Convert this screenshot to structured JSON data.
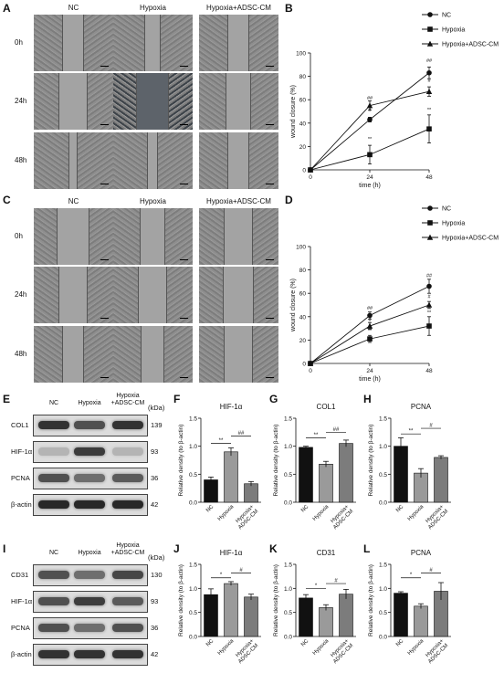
{
  "panels": {
    "A": "A",
    "B": "B",
    "C": "C",
    "D": "D",
    "E": "E",
    "F": "F",
    "G": "G",
    "H": "H",
    "I": "I",
    "J": "J",
    "K": "K",
    "L": "L"
  },
  "micro_cols": [
    "NC",
    "Hypoxia",
    "Hypoxia+ADSC-CM"
  ],
  "micro_rows": [
    "0h",
    "24h",
    "48h"
  ],
  "wb_top": {
    "cols": [
      "NC",
      "Hypoxia",
      "Hypoxia\n+ADSC-CM"
    ],
    "kda_title": "(kDa)",
    "rows": [
      {
        "name": "COL1",
        "kda": "139"
      },
      {
        "name": "HIF-1α",
        "kda": "93"
      },
      {
        "name": "PCNA",
        "kda": "36"
      },
      {
        "name": "β-actin",
        "kda": "42"
      }
    ]
  },
  "wb_bottom": {
    "cols": [
      "NC",
      "Hypoxia",
      "Hypoxia\n+ADSC-CM"
    ],
    "kda_title": "(kDa)",
    "rows": [
      {
        "name": "CD31",
        "kda": "130"
      },
      {
        "name": "HIF-1α",
        "kda": "93"
      },
      {
        "name": "PCNA",
        "kda": "36"
      },
      {
        "name": "β-actin",
        "kda": "42"
      }
    ]
  },
  "chart_data": [
    {
      "panel": "B",
      "type": "line",
      "x": [
        0,
        24,
        48
      ],
      "xlabel": "time (h)",
      "ylabel": "wound closure (%)",
      "ylim": [
        0,
        100
      ],
      "yticks": [
        0,
        20,
        40,
        60,
        80,
        100
      ],
      "legend_position": "top-right",
      "series": [
        {
          "name": "NC",
          "marker": "circle",
          "values": [
            0,
            43,
            83
          ],
          "err": [
            0,
            2,
            5
          ]
        },
        {
          "name": "Hypoxia",
          "marker": "square",
          "values": [
            0,
            13,
            35
          ],
          "err": [
            0,
            8,
            12
          ]
        },
        {
          "name": "Hypoxia+ADSC-CM",
          "marker": "triangle",
          "values": [
            0,
            55,
            67
          ],
          "err": [
            0,
            4,
            4
          ]
        }
      ],
      "annotations": [
        {
          "x": 24,
          "y": 60,
          "text": "##"
        },
        {
          "x": 24,
          "y": 50,
          "text": "#"
        },
        {
          "x": 24,
          "y": 25,
          "text": "**"
        },
        {
          "x": 48,
          "y": 92,
          "text": "##"
        },
        {
          "x": 48,
          "y": 75,
          "text": "#"
        },
        {
          "x": 48,
          "y": 50,
          "text": "**"
        }
      ]
    },
    {
      "panel": "D",
      "type": "line",
      "x": [
        0,
        24,
        48
      ],
      "xlabel": "time (h)",
      "ylabel": "wound closure (%)",
      "ylim": [
        0,
        100
      ],
      "yticks": [
        0,
        20,
        40,
        60,
        80,
        100
      ],
      "legend_position": "top-right",
      "series": [
        {
          "name": "NC",
          "marker": "circle",
          "values": [
            0,
            41,
            66
          ],
          "err": [
            0,
            3,
            6
          ]
        },
        {
          "name": "Hypoxia",
          "marker": "square",
          "values": [
            0,
            21,
            32
          ],
          "err": [
            0,
            3,
            8
          ]
        },
        {
          "name": "Hypoxia+ADSC-CM",
          "marker": "triangle",
          "values": [
            0,
            32,
            50
          ],
          "err": [
            0,
            3,
            3
          ]
        }
      ],
      "annotations": [
        {
          "x": 24,
          "y": 46,
          "text": "##"
        },
        {
          "x": 24,
          "y": 36,
          "text": "#"
        },
        {
          "x": 24,
          "y": 27,
          "text": "**"
        },
        {
          "x": 48,
          "y": 74,
          "text": "##"
        },
        {
          "x": 48,
          "y": 56,
          "text": "#"
        },
        {
          "x": 48,
          "y": 42,
          "text": "**"
        }
      ]
    },
    {
      "panel": "F",
      "type": "bar",
      "title": "HIF-1α",
      "categories": [
        "NC",
        "Hypoxia",
        "Hypoxia+\nADSC-CM"
      ],
      "values": [
        0.4,
        0.9,
        0.33
      ],
      "err": [
        0.05,
        0.07,
        0.04
      ],
      "ylim": [
        0,
        1.5
      ],
      "yticks": [
        0.0,
        0.5,
        1.0,
        1.5
      ],
      "ylabel": "Relative density (to β-actin)",
      "sig": [
        {
          "from": 0,
          "to": 1,
          "text": "**",
          "y": 1.05
        },
        {
          "from": 1,
          "to": 2,
          "text": "##",
          "y": 1.18
        }
      ]
    },
    {
      "panel": "G",
      "type": "bar",
      "title": "COL1",
      "categories": [
        "NC",
        "Hypoxia",
        "Hypoxia+\nADSC-CM"
      ],
      "values": [
        0.98,
        0.68,
        1.05
      ],
      "err": [
        0.02,
        0.05,
        0.06
      ],
      "ylim": [
        0,
        1.5
      ],
      "yticks": [
        0.0,
        0.5,
        1.0,
        1.5
      ],
      "ylabel": "Relative density (to β-actin)",
      "sig": [
        {
          "from": 0,
          "to": 1,
          "text": "**",
          "y": 1.15
        },
        {
          "from": 1,
          "to": 2,
          "text": "##",
          "y": 1.25
        }
      ]
    },
    {
      "panel": "H",
      "type": "bar",
      "title": "PCNA",
      "categories": [
        "NC",
        "Hypoxia",
        "Hypoxia+\nADSC-CM"
      ],
      "values": [
        1.0,
        0.52,
        0.8
      ],
      "err": [
        0.15,
        0.08,
        0.03
      ],
      "ylim": [
        0,
        1.5
      ],
      "yticks": [
        0.0,
        0.5,
        1.0,
        1.5
      ],
      "ylabel": "Relative density (to β-actin)",
      "sig": [
        {
          "from": 0,
          "to": 1,
          "text": "**",
          "y": 1.22
        },
        {
          "from": 1,
          "to": 2,
          "text": "#",
          "y": 1.32
        }
      ]
    },
    {
      "panel": "J",
      "type": "bar",
      "title": "HIF-1α",
      "categories": [
        "NC",
        "Hypoxia",
        "Hypoxia+\nADSC-CM"
      ],
      "values": [
        0.87,
        1.1,
        0.82
      ],
      "err": [
        0.12,
        0.04,
        0.06
      ],
      "ylim": [
        0,
        1.5
      ],
      "yticks": [
        0.0,
        0.5,
        1.0,
        1.5
      ],
      "ylabel": "Relative density (to β-actin)",
      "sig": [
        {
          "from": 0,
          "to": 1,
          "text": "*",
          "y": 1.22
        },
        {
          "from": 1,
          "to": 2,
          "text": "#",
          "y": 1.32
        }
      ]
    },
    {
      "panel": "K",
      "type": "bar",
      "title": "CD31",
      "categories": [
        "NC",
        "Hypoxia",
        "Hypoxia+\nADSC-CM"
      ],
      "values": [
        0.8,
        0.6,
        0.88
      ],
      "err": [
        0.07,
        0.06,
        0.1
      ],
      "ylim": [
        0,
        1.5
      ],
      "yticks": [
        0.0,
        0.5,
        1.0,
        1.5
      ],
      "ylabel": "Relative density (to β-actin)",
      "sig": [
        {
          "from": 0,
          "to": 1,
          "text": "*",
          "y": 1.0
        },
        {
          "from": 1,
          "to": 2,
          "text": "#",
          "y": 1.1
        }
      ]
    },
    {
      "panel": "L",
      "type": "bar",
      "title": "PCNA",
      "categories": [
        "NC",
        "Hypoxia",
        "Hypoxia+\nADSC-CM"
      ],
      "values": [
        0.9,
        0.63,
        0.94
      ],
      "err": [
        0.03,
        0.05,
        0.18
      ],
      "ylim": [
        0,
        1.5
      ],
      "yticks": [
        0.0,
        0.5,
        1.0,
        1.5
      ],
      "ylabel": "Relative density (to β-actin)",
      "sig": [
        {
          "from": 0,
          "to": 1,
          "text": "*",
          "y": 1.22
        },
        {
          "from": 1,
          "to": 2,
          "text": "#",
          "y": 1.32
        }
      ]
    }
  ]
}
